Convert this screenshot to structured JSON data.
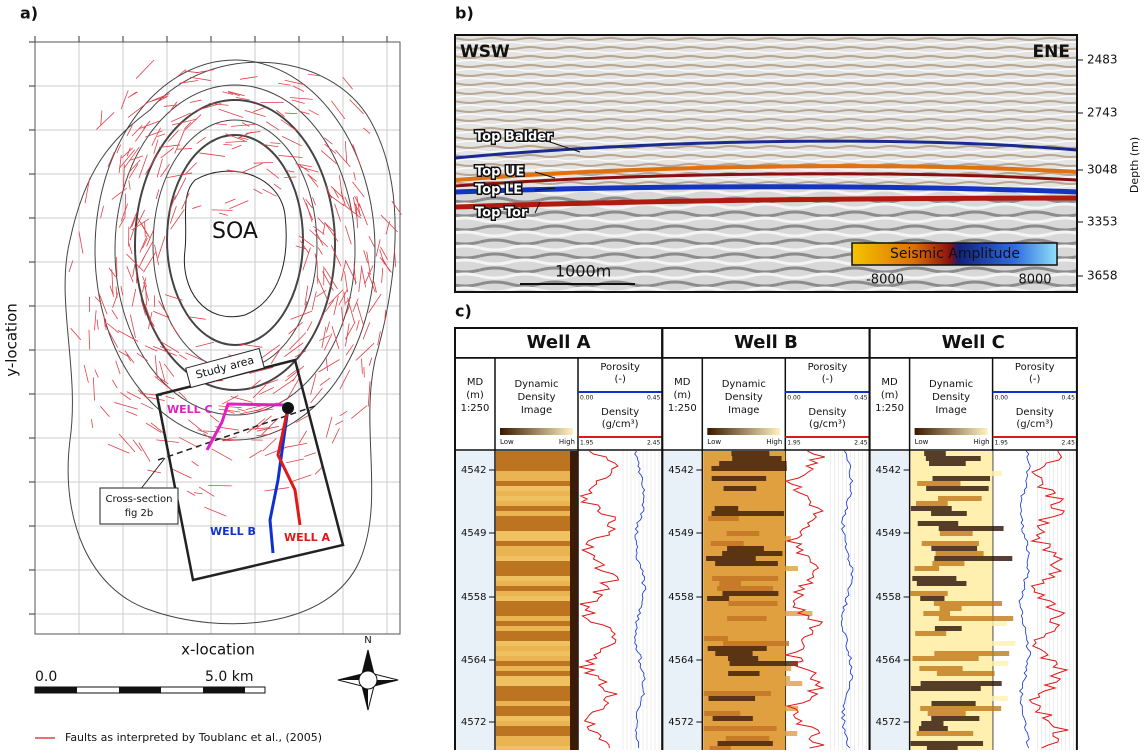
{
  "panel_a": {
    "label": "a)",
    "soa": "SOA",
    "study_area": "Study area",
    "well_c": "WELL C",
    "well_b": "WELL B",
    "well_a": "WELL A",
    "cross_section": [
      "Cross-section",
      "fig 2b"
    ],
    "y_axis": "y-location",
    "x_axis": "x-location",
    "scale_start": "0.0",
    "scale_end": "5.0 km",
    "north": "N",
    "legend": "Faults as interpreted by Toublanc et al., (2005)"
  },
  "panel_b": {
    "label": "b)",
    "left": "WSW",
    "right": "ENE",
    "depth_ticks": [
      "2483",
      "2743",
      "3048",
      "3353",
      "3658"
    ],
    "depth_label": "Depth (m)",
    "horizons": [
      "Top Balder",
      "Top UE",
      "Top LE",
      "Top Tor"
    ],
    "scale": "1000m",
    "colorbar": "Seismic Amplitude",
    "colorbar_min": "-8000",
    "colorbar_max": "8000"
  },
  "panel_c": {
    "label": "c)",
    "wells": [
      {
        "title": "Well A",
        "md": [
          "MD",
          "(m)",
          "1:250"
        ],
        "image": [
          "Dynamic",
          "Density",
          "Image"
        ],
        "low": "Low",
        "high": "High",
        "porosity": [
          "Porosity",
          "(-)"
        ],
        "porosity_range": [
          "0.00",
          "0.45"
        ],
        "density": [
          "Density",
          "(g/cm³)"
        ],
        "density_range": [
          "1.95",
          "2.45"
        ],
        "depths": [
          "4542",
          "4549",
          "4558",
          "4564",
          "4572"
        ]
      },
      {
        "title": "Well B",
        "md": [
          "MD",
          "(m)",
          "1:250"
        ],
        "image": [
          "Dynamic",
          "Density",
          "Image"
        ],
        "low": "Low",
        "high": "High",
        "porosity": [
          "Porosity",
          "(-)"
        ],
        "porosity_range": [
          "0.00",
          "0.45"
        ],
        "density": [
          "Density",
          "(g/cm³)"
        ],
        "density_range": [
          "1.95",
          "2.45"
        ],
        "depths": [
          "4542",
          "4549",
          "4558",
          "4564",
          "4572"
        ]
      },
      {
        "title": "Well C",
        "md": [
          "MD",
          "(m)",
          "1:250"
        ],
        "image": [
          "Dynamic",
          "Density",
          "Image"
        ],
        "low": "Low",
        "high": "High",
        "porosity": [
          "Porosity",
          "(-)"
        ],
        "porosity_range": [
          "0.00",
          "0.45"
        ],
        "density": [
          "Density",
          "(g/cm³)"
        ],
        "density_range": [
          "1.95",
          "2.45"
        ],
        "depths": [
          "4542",
          "4549",
          "4558",
          "4564",
          "4572"
        ]
      }
    ]
  }
}
